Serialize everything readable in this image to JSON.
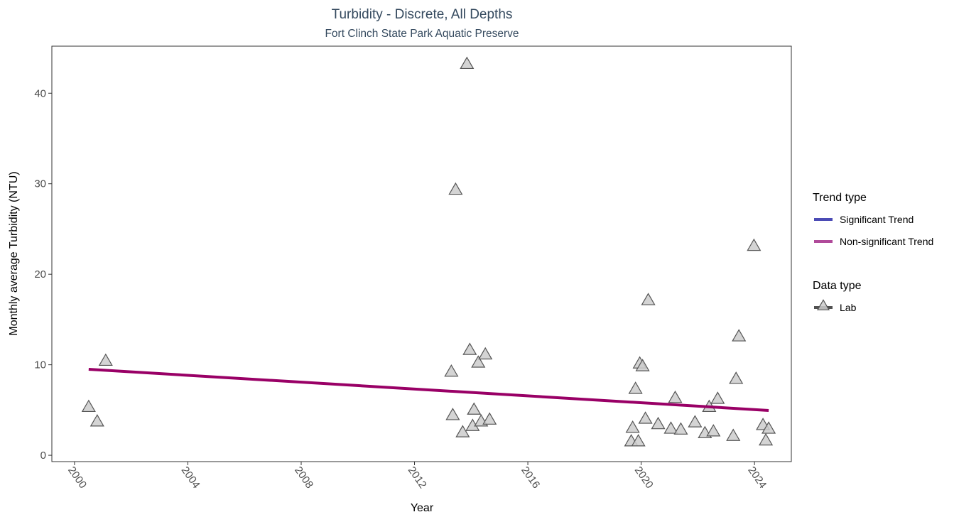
{
  "chart_data": {
    "type": "scatter",
    "title": "Turbidity - Discrete, All Depths",
    "subtitle": "Fort Clinch State Park Aquatic Preserve",
    "xlabel": "Year",
    "ylabel": "Monthly average Turbidity (NTU)",
    "xlim": [
      1999.2,
      2025.3
    ],
    "ylim": [
      -0.7,
      45.2
    ],
    "x_ticks": [
      2000,
      2004,
      2008,
      2012,
      2016,
      2020,
      2024
    ],
    "y_ticks": [
      0,
      10,
      20,
      30,
      40
    ],
    "grid": false,
    "colors": {
      "significant": "#4b4bb5",
      "non_significant": "#b04a9a",
      "trend_line": "#990066",
      "point_fill": "#cccccc",
      "point_stroke": "#555555",
      "title": "#34495e"
    },
    "series": [
      {
        "name": "Lab",
        "points": [
          [
            2000.5,
            5.3
          ],
          [
            2000.8,
            3.7
          ],
          [
            2001.1,
            10.4
          ],
          [
            2013.3,
            9.2
          ],
          [
            2013.35,
            4.4
          ],
          [
            2013.45,
            29.3
          ],
          [
            2013.7,
            2.5
          ],
          [
            2013.85,
            43.2
          ],
          [
            2013.95,
            11.6
          ],
          [
            2014.05,
            3.2
          ],
          [
            2014.1,
            5.0
          ],
          [
            2014.25,
            10.2
          ],
          [
            2014.35,
            3.7
          ],
          [
            2014.5,
            11.1
          ],
          [
            2014.65,
            3.9
          ],
          [
            2019.65,
            1.5
          ],
          [
            2019.7,
            3.0
          ],
          [
            2019.8,
            7.3
          ],
          [
            2019.9,
            1.5
          ],
          [
            2019.95,
            10.1
          ],
          [
            2020.05,
            9.8
          ],
          [
            2020.15,
            4.0
          ],
          [
            2020.25,
            17.1
          ],
          [
            2020.6,
            3.4
          ],
          [
            2021.05,
            2.9
          ],
          [
            2021.2,
            6.3
          ],
          [
            2021.4,
            2.8
          ],
          [
            2021.9,
            3.6
          ],
          [
            2022.25,
            2.4
          ],
          [
            2022.4,
            5.3
          ],
          [
            2022.55,
            2.6
          ],
          [
            2022.7,
            6.2
          ],
          [
            2023.25,
            2.1
          ],
          [
            2023.35,
            8.4
          ],
          [
            2023.45,
            13.1
          ],
          [
            2023.98,
            23.1
          ],
          [
            2024.3,
            3.3
          ],
          [
            2024.4,
            1.6
          ],
          [
            2024.5,
            2.9
          ]
        ]
      }
    ],
    "trend_line": {
      "name": "Non-significant Trend",
      "x": [
        2000.5,
        2024.5
      ],
      "y": [
        9.5,
        4.95
      ]
    },
    "legend": {
      "placement": "right",
      "groups": [
        {
          "title": "Trend type",
          "entries": [
            {
              "label": "Significant Trend",
              "marker": "line",
              "color": "#4b4bb5"
            },
            {
              "label": "Non-significant Trend",
              "marker": "line",
              "color": "#b04a9a"
            }
          ]
        },
        {
          "title": "Data type",
          "entries": [
            {
              "label": "Lab",
              "marker": "triangle",
              "color": "#555555"
            }
          ]
        }
      ]
    }
  }
}
